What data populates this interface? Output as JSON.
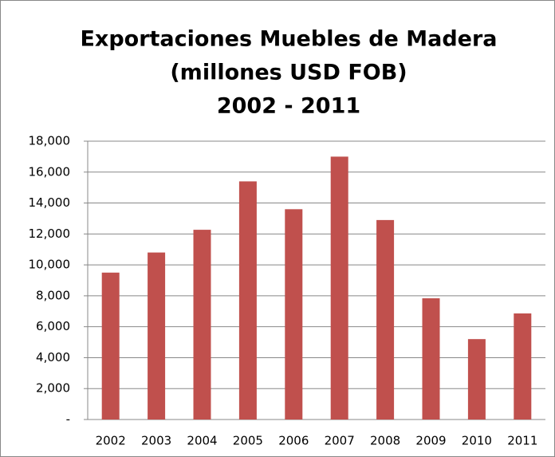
{
  "chart_data": {
    "type": "bar",
    "title": [
      "Exportaciones Muebles de Madera",
      "(millones USD FOB)",
      "2002 - 2011"
    ],
    "categories": [
      "2002",
      "2003",
      "2004",
      "2005",
      "2006",
      "2007",
      "2008",
      "2009",
      "2010",
      "2011"
    ],
    "values": [
      9500,
      10800,
      12270,
      15400,
      13600,
      17000,
      12900,
      7840,
      5200,
      6860
    ],
    "color": "#c0504d",
    "ylim": [
      0,
      18000
    ],
    "yticks": [
      {
        "value": 0,
        "label": "-"
      },
      {
        "value": 2000,
        "label": "2,000"
      },
      {
        "value": 4000,
        "label": "4,000"
      },
      {
        "value": 6000,
        "label": "6,000"
      },
      {
        "value": 8000,
        "label": "8,000"
      },
      {
        "value": 10000,
        "label": "10,000"
      },
      {
        "value": 12000,
        "label": "12,000"
      },
      {
        "value": 14000,
        "label": "14,000"
      },
      {
        "value": 16000,
        "label": "16,000"
      },
      {
        "value": 18000,
        "label": "18,000"
      }
    ],
    "grid": true
  }
}
